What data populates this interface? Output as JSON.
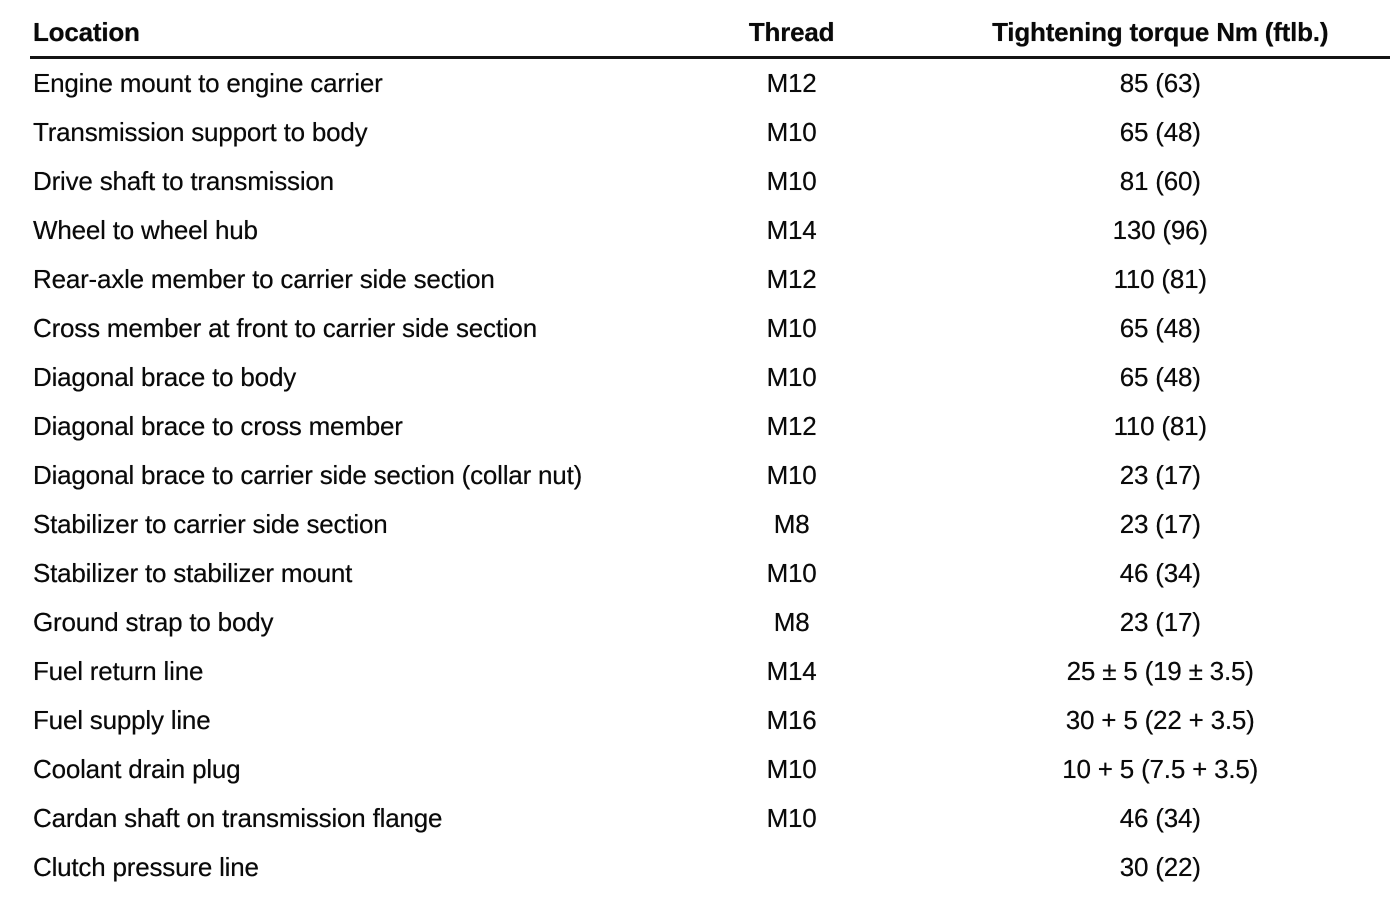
{
  "colors": {
    "background": "#ffffff",
    "text": "#0a0a0a",
    "rule": "#141414"
  },
  "table": {
    "headers": [
      "Location",
      "Thread",
      "Tightening torque Nm (ftlb.)"
    ],
    "rows": [
      {
        "location": "Engine mount to engine carrier",
        "thread": "M12",
        "torque": "85 (63)"
      },
      {
        "location": "Transmission support to body",
        "thread": "M10",
        "torque": "65 (48)"
      },
      {
        "location": "Drive shaft to transmission",
        "thread": "M10",
        "torque": "81 (60)"
      },
      {
        "location": "Wheel to wheel hub",
        "thread": "M14",
        "torque": "130 (96)"
      },
      {
        "location": "Rear-axle member to carrier side section",
        "thread": "M12",
        "torque": "110 (81)"
      },
      {
        "location": "Cross member at front to carrier side section",
        "thread": "M10",
        "torque": "65 (48)"
      },
      {
        "location": "Diagonal brace to body",
        "thread": "M10",
        "torque": "65 (48)"
      },
      {
        "location": "Diagonal brace to cross member",
        "thread": "M12",
        "torque": "110 (81)"
      },
      {
        "location": "Diagonal brace to carrier side section (collar nut)",
        "thread": "M10",
        "torque": "23 (17)"
      },
      {
        "location": "Stabilizer to carrier side section",
        "thread": "M8",
        "torque": "23 (17)"
      },
      {
        "location": "Stabilizer to stabilizer mount",
        "thread": "M10",
        "torque": "46 (34)"
      },
      {
        "location": "Ground strap to body",
        "thread": "M8",
        "torque": "23 (17)"
      },
      {
        "location": "Fuel return line",
        "thread": "M14",
        "torque": "25 ± 5 (19 ± 3.5)"
      },
      {
        "location": "Fuel supply line",
        "thread": "M16",
        "torque": "30 + 5 (22 + 3.5)"
      },
      {
        "location": "Coolant drain plug",
        "thread": "M10",
        "torque": "10 + 5 (7.5 + 3.5)"
      },
      {
        "location": "Cardan shaft on transmission flange",
        "thread": "M10",
        "torque": "46 (34)"
      },
      {
        "location": "Clutch pressure line",
        "thread": "",
        "torque": "30 (22)"
      }
    ]
  }
}
